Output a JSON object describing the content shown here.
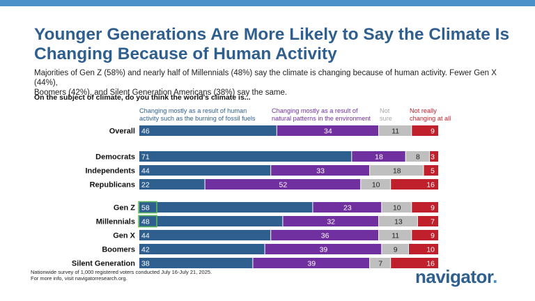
{
  "header": {
    "title_line1": "Younger Generations Are More Likely to Say the Climate Is",
    "title_line2": "Changing Because of Human Activity",
    "subtitle_line1": "Majorities of Gen Z (58%) and nearly half of Millennials (48%) say the climate is changing because of human activity. Fewer Gen X (44%),",
    "subtitle_line2": "Boomers (42%), and Silent Generation Americans (38%) say the same.",
    "question": "On the subject of climate, do you think the world's climate is..."
  },
  "footer": {
    "note_line1": "Nationwide survey of 1,000 registered voters conducted July 16-July 21, 2025.",
    "note_line2": "For more info, visit navigatorresearch.org.",
    "logo_text": "navigator",
    "logo_dot": "."
  },
  "colors": {
    "human": "#2e5f8e",
    "natural": "#7030a0",
    "not_sure": "#bfbfbf",
    "not_changing": "#c0202b",
    "highlight_box": "#5cb85c",
    "accent_bar": "#4a90c9"
  },
  "chart_data": {
    "type": "bar",
    "orientation": "horizontal",
    "stacked": true,
    "legend_position": "top",
    "series": [
      {
        "key": "human",
        "name_lines": [
          "Changing mostly as a result of human",
          "activity such as the burning of fossil fuels"
        ]
      },
      {
        "key": "natural",
        "name_lines": [
          "Changing mostly as a result of",
          "natural patterns in the environment"
        ]
      },
      {
        "key": "not_sure",
        "name_lines": [
          "Not",
          "sure"
        ]
      },
      {
        "key": "not_changing",
        "name_lines": [
          "Not really",
          "changing at all"
        ]
      }
    ],
    "groups": [
      {
        "rows": [
          {
            "label": "Overall",
            "values": [
              46,
              34,
              11,
              9
            ]
          }
        ]
      },
      {
        "rows": [
          {
            "label": "Democrats",
            "values": [
              71,
              18,
              8,
              3
            ]
          },
          {
            "label": "Independents",
            "values": [
              44,
              33,
              18,
              5
            ]
          },
          {
            "label": "Republicans",
            "values": [
              22,
              52,
              10,
              16
            ]
          }
        ]
      },
      {
        "rows": [
          {
            "label": "Gen Z",
            "values": [
              58,
              23,
              10,
              9
            ],
            "highlight_first": true
          },
          {
            "label": "Millennials",
            "values": [
              48,
              32,
              13,
              7
            ],
            "highlight_first": true
          },
          {
            "label": "Gen X",
            "values": [
              44,
              36,
              11,
              9
            ]
          },
          {
            "label": "Boomers",
            "values": [
              42,
              39,
              9,
              10
            ]
          },
          {
            "label": "Silent Generation",
            "values": [
              38,
              39,
              7,
              16
            ]
          }
        ]
      }
    ]
  }
}
